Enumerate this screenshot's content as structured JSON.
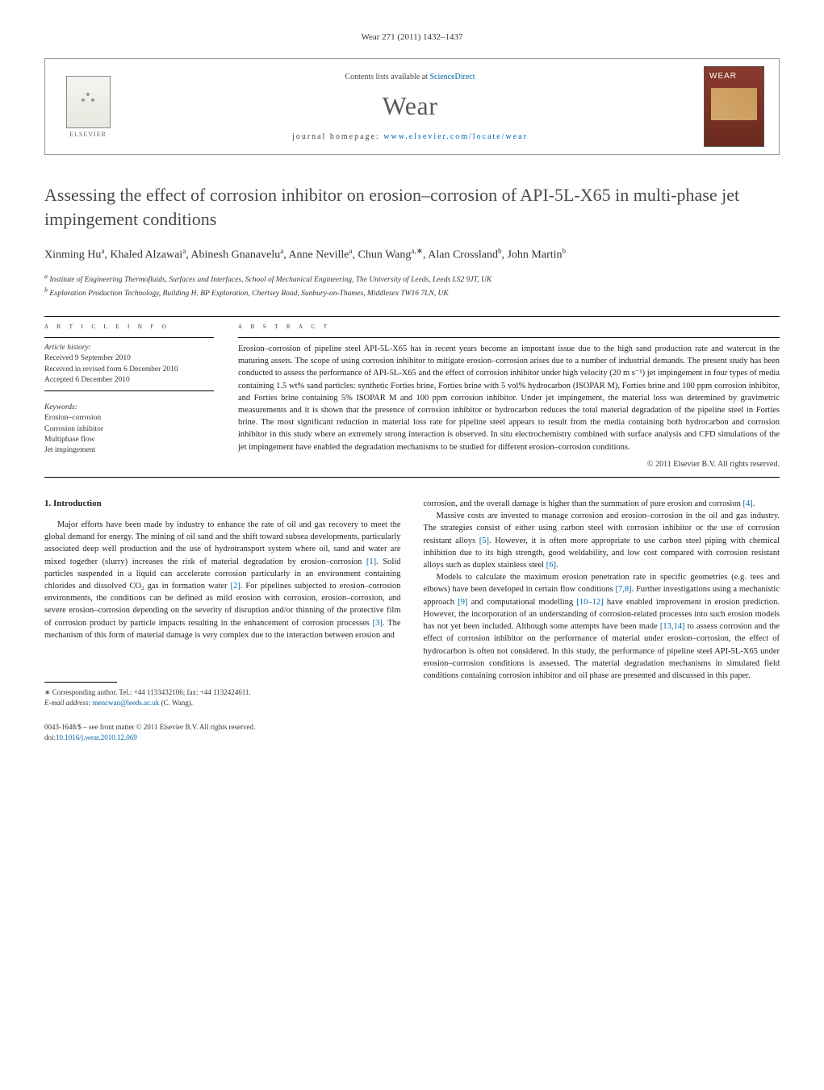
{
  "journal_ref": "Wear 271 (2011) 1432–1437",
  "header": {
    "contents_prefix": "Contents lists available at ",
    "contents_link": "ScienceDirect",
    "journal_title": "Wear",
    "homepage_prefix": "journal homepage: ",
    "homepage_link": "www.elsevier.com/locate/wear",
    "cover_title": "WEAR",
    "publisher": "ELSEVIER"
  },
  "article": {
    "title": "Assessing the effect of corrosion inhibitor on erosion–corrosion of API-5L-X65 in multi-phase jet impingement conditions",
    "authors_line1": "Xinming Hu",
    "a1_sup": "a",
    "author2": ", Khaled Alzawai",
    "a2_sup": "a",
    "author3": ", Abinesh Gnanavelu",
    "a3_sup": "a",
    "author4": ", Anne Neville",
    "a4_sup": "a",
    "author5": ", Chun Wang",
    "a5_sup": "a,",
    "corr": "∗",
    "author6": ", Alan Crossland",
    "a6_sup": "b",
    "author7": ", John Martin",
    "a7_sup": "b",
    "affiliations": {
      "a_label": "a",
      "a_text": " Institute of Engineering Thermofluids, Surfaces and Interfaces, School of Mechanical Engineering, The University of Leeds, Leeds LS2 9JT, UK",
      "b_label": "b",
      "b_text": " Exploration Production Technology, Building H, BP Exploration, Chertsey Road, Sunbury-on-Thames, Middlesex TW16 7LN, UK"
    }
  },
  "info": {
    "section_label": "a r t i c l e   i n f o",
    "history_label": "Article history:",
    "received": "Received 9 September 2010",
    "revised": "Received in revised form 6 December 2010",
    "accepted": "Accepted 6 December 2010",
    "keywords_label": "Keywords:",
    "kw1": "Erosion–corrosion",
    "kw2": "Corrosion inhibitor",
    "kw3": "Multiphase flow",
    "kw4": "Jet impingement"
  },
  "abstract": {
    "label": "a b s t r a c t",
    "text": "Erosion–corrosion of pipeline steel API-5L-X65 has in recent years become an important issue due to the high sand production rate and watercut in the maturing assets. The scope of using corrosion inhibitor to mitigate erosion–corrosion arises due to a number of industrial demands. The present study has been conducted to assess the performance of API-5L-X65 and the effect of corrosion inhibitor under high velocity (20 m s⁻¹) jet impingement in four types of media containing 1.5 wt% sand particles: synthetic Forties brine, Forties brine with 5 vol% hydrocarbon (ISOPAR M), Forties brine and 100 ppm corrosion inhibitor, and Forties brine containing 5% ISOPAR M and 100 ppm corrosion inhibitor. Under jet impingement, the material loss was determined by gravimetric measurements and it is shown that the presence of corrosion inhibitor or hydrocarbon reduces the total material degradation of the pipeline steel in Forties brine. The most significant reduction in material loss rate for pipeline steel appears to result from the media containing both hydrocarbon and corrosion inhibitor in this study where an extremely strong interaction is observed. In situ electrochemistry combined with surface analysis and CFD simulations of the jet impingement have enabled the degradation mechanisms to be studied for different erosion–corrosion conditions.",
    "copyright": "© 2011 Elsevier B.V. All rights reserved."
  },
  "body": {
    "heading": "1. Introduction",
    "col1_p1a": "Major efforts have been made by industry to enhance the rate of oil and gas recovery to meet the global demand for energy. The mining of oil sand and the shift toward subsea developments, particularly associated deep well production and the use of hydrotransport system where oil, sand and water are mixed together (slurry) increases the risk of material degradation by erosion–corrosion ",
    "ref1": "[1]",
    "col1_p1b": ". Solid particles suspended in a liquid can accelerate corrosion particularly in an environment containing chlorides and dissolved CO₂ gas in formation water ",
    "ref2": "[2]",
    "col1_p1c": ". For pipelines subjected to erosion–corrosion environments, the conditions can be defined as mild erosion with corrosion, erosion–corrosion, and severe erosion–corrosion depending on the severity of disruption and/or thinning of the protective film of corrosion product by particle impacts resulting in the enhancement of corrosion processes ",
    "ref3": "[3]",
    "col1_p1d": ". The mechanism of this form of material damage is very complex due to the interaction between erosion and",
    "col2_p1a": "corrosion, and the overall damage is higher than the summation of pure erosion and corrosion ",
    "ref4": "[4]",
    "col2_p1b": ".",
    "col2_p2a": "Massive costs are invested to manage corrosion and erosion–corrosion in the oil and gas industry. The strategies consist of either using carbon steel with corrosion inhibitor or the use of corrosion resistant alloys ",
    "ref5": "[5]",
    "col2_p2b": ". However, it is often more appropriate to use carbon steel piping with chemical inhibition due to its high strength, good weldability, and low cost compared with corrosion resistant alloys such as duplex stainless steel ",
    "ref6": "[6]",
    "col2_p2c": ".",
    "col2_p3a": "Models to calculate the maximum erosion penetration rate in specific geometries (e.g. tees and elbows) have been developed in certain flow conditions ",
    "ref78": "[7,8]",
    "col2_p3b": ". Further investigations using a mechanistic approach ",
    "ref9": "[9]",
    "col2_p3c": " and computational modelling ",
    "ref1012": "[10–12]",
    "col2_p3d": " have enabled improvement in erosion prediction. However, the incorporation of an understanding of corrosion-related processes into such erosion models has not yet been included. Although some attempts have been made ",
    "ref1314": "[13,14]",
    "col2_p3e": " to assess corrosion and the effect of corrosion inhibitor on the performance of material under erosion–corrosion, the effect of hydrocarbon is often not considered. In this study, the performance of pipeline steel API-5L-X65 under erosion–corrosion conditions is assessed. The material degradation mechanisms in simulated field conditions containing corrosion inhibitor and oil phase are presented and discussed in this paper."
  },
  "footnote": {
    "corr_label": "∗ Corresponding author. Tel.: +44 1133432106; fax: +44 1132424611.",
    "email_label": "E-mail address: ",
    "email": "mencwan@leeds.ac.uk",
    "email_suffix": " (C. Wang)."
  },
  "footer": {
    "line1": "0043-1648/$ – see front matter © 2011 Elsevier B.V. All rights reserved.",
    "doi_prefix": "doi:",
    "doi": "10.1016/j.wear.2010.12.069"
  }
}
